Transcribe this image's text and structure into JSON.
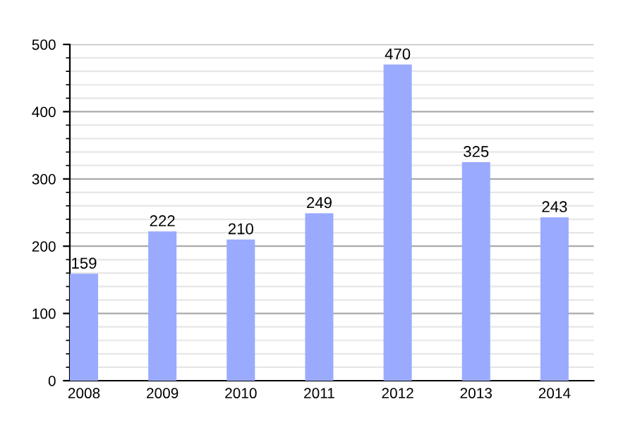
{
  "chart_data": {
    "type": "bar",
    "categories": [
      "2008",
      "2009",
      "2010",
      "2011",
      "2012",
      "2013",
      "2014"
    ],
    "values": [
      159,
      222,
      210,
      249,
      470,
      325,
      243
    ],
    "color": "#99aaff",
    "data_labels": true,
    "ylim": [
      0,
      500
    ],
    "yticks": [
      0,
      100,
      200,
      300,
      400,
      500
    ],
    "grid": "y"
  }
}
